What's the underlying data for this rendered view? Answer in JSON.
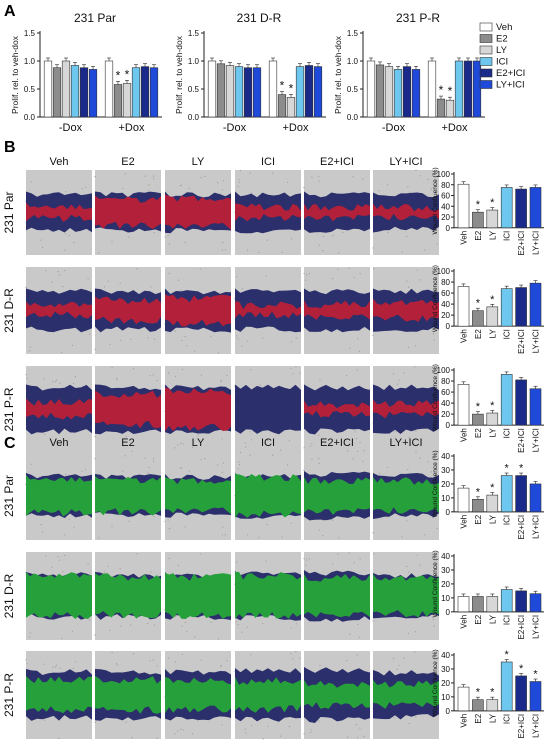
{
  "panel_labels": {
    "a": "A",
    "b": "B",
    "c": "C"
  },
  "colors": {
    "veh": "#ffffff",
    "e2": "#8c8c8c",
    "ly": "#d7d7d7",
    "ici": "#6ec7ee",
    "e2ici": "#1a2a8a",
    "lyici": "#1f49d8",
    "edge": "#333333",
    "tissue": "#c9c9c9",
    "navy": "#2b2f6b",
    "red": "#b3203a",
    "green": "#26a03a"
  },
  "panel_a": {
    "ylabel": "Prolif. rel. to veh-dox",
    "yticks": [
      "0.0",
      "0.5",
      "1.0",
      "1.5"
    ],
    "xcats": [
      "-Dox",
      "+Dox"
    ]
  },
  "panel_b": {
    "row_labels": [
      "231 Par",
      "231 D-R",
      "231 P-R"
    ],
    "col_labels": [
      "Veh",
      "E2",
      "LY",
      "ICI",
      "E2+ICI",
      "LY+ICI"
    ],
    "ylabel": "Wound Confluence (%)",
    "yticks": [
      "0",
      "20",
      "40",
      "60",
      "80",
      "100"
    ],
    "xticks": [
      "Veh",
      "E2",
      "LY",
      "ICI",
      "E2+ICI",
      "LY+ICI"
    ]
  },
  "panel_c": {
    "row_labels": [
      "231 Par",
      "231 D-R",
      "231 P-R"
    ],
    "col_labels": [
      "Veh",
      "E2",
      "LY",
      "ICI",
      "E2+ICI",
      "LY+ICI"
    ],
    "ylabel": "Wound Confluence (%)",
    "yticks": [
      "0",
      "10",
      "20",
      "30",
      "40"
    ],
    "xticks": [
      "Veh",
      "E2",
      "LY",
      "ICI",
      "E2+ICI",
      "LY+ICI"
    ]
  },
  "legend": {
    "items": [
      "Veh",
      "E2",
      "LY",
      "ICI",
      "E2+ICI",
      "LY+ICI"
    ]
  },
  "chart_data": [
    {
      "type": "bar",
      "title": "231 Par",
      "ylabel": "Prolif. rel. to veh-dox",
      "ylim": [
        0,
        1.5
      ],
      "categories": [
        "-Dox",
        "+Dox"
      ],
      "series": [
        {
          "name": "Veh",
          "values": [
            1.0,
            1.0
          ]
        },
        {
          "name": "E2",
          "values": [
            0.88,
            0.58
          ]
        },
        {
          "name": "LY",
          "values": [
            1.0,
            0.6
          ]
        },
        {
          "name": "ICI",
          "values": [
            0.92,
            0.88
          ]
        },
        {
          "name": "E2+ICI",
          "values": [
            0.88,
            0.9
          ]
        },
        {
          "name": "LY+ICI",
          "values": [
            0.85,
            0.88
          ]
        }
      ],
      "significant": [
        [
          1,
          1
        ],
        [
          1,
          2
        ]
      ]
    },
    {
      "type": "bar",
      "title": "231 D-R",
      "ylabel": "",
      "ylim": [
        0,
        1.5
      ],
      "categories": [
        "-Dox",
        "+Dox"
      ],
      "series": [
        {
          "name": "Veh",
          "values": [
            1.0,
            1.0
          ]
        },
        {
          "name": "E2",
          "values": [
            0.95,
            0.4
          ]
        },
        {
          "name": "LY",
          "values": [
            0.92,
            0.35
          ]
        },
        {
          "name": "ICI",
          "values": [
            0.9,
            0.9
          ]
        },
        {
          "name": "E2+ICI",
          "values": [
            0.88,
            0.92
          ]
        },
        {
          "name": "LY+ICI",
          "values": [
            0.88,
            0.9
          ]
        }
      ],
      "significant": [
        [
          1,
          1
        ],
        [
          1,
          2
        ]
      ]
    },
    {
      "type": "bar",
      "title": "231 P-R",
      "ylabel": "",
      "ylim": [
        0,
        1.5
      ],
      "categories": [
        "-Dox",
        "+Dox"
      ],
      "series": [
        {
          "name": "Veh",
          "values": [
            1.0,
            1.0
          ]
        },
        {
          "name": "E2",
          "values": [
            0.93,
            0.32
          ]
        },
        {
          "name": "LY",
          "values": [
            0.9,
            0.3
          ]
        },
        {
          "name": "ICI",
          "values": [
            0.85,
            1.0
          ]
        },
        {
          "name": "E2+ICI",
          "values": [
            0.9,
            1.0
          ]
        },
        {
          "name": "LY+ICI",
          "values": [
            0.85,
            1.0
          ]
        }
      ],
      "significant": [
        [
          1,
          1
        ],
        [
          1,
          2
        ]
      ]
    },
    {
      "type": "bar",
      "title": "",
      "ylabel": "Wound Confluence (%)",
      "ylim": [
        0,
        100
      ],
      "categories": [
        "Veh",
        "E2",
        "LY",
        "ICI",
        "E2+ICI",
        "LY+ICI"
      ],
      "values": [
        81,
        29,
        33,
        75,
        72,
        75
      ],
      "significant": [
        1,
        2
      ]
    },
    {
      "type": "bar",
      "title": "",
      "ylabel": "Wound Confluence (%)",
      "ylim": [
        0,
        100
      ],
      "categories": [
        "Veh",
        "E2",
        "LY",
        "ICI",
        "E2+ICI",
        "LY+ICI"
      ],
      "values": [
        72,
        28,
        35,
        68,
        70,
        78
      ],
      "significant": [
        1,
        2
      ]
    },
    {
      "type": "bar",
      "title": "",
      "ylabel": "Wound Confluence (%)",
      "ylim": [
        0,
        100
      ],
      "categories": [
        "Veh",
        "E2",
        "LY",
        "ICI",
        "E2+ICI",
        "LY+ICI"
      ],
      "values": [
        74,
        20,
        22,
        92,
        82,
        66
      ],
      "significant": [
        1,
        2
      ]
    },
    {
      "type": "bar",
      "title": "",
      "ylabel": "Wound Confluence (%)",
      "ylim": [
        0,
        40
      ],
      "categories": [
        "Veh",
        "E2",
        "LY",
        "ICI",
        "E2+ICI",
        "LY+ICI"
      ],
      "values": [
        17,
        9,
        12,
        26,
        26,
        20
      ],
      "significant": [
        1,
        2,
        3,
        4
      ]
    },
    {
      "type": "bar",
      "title": "",
      "ylabel": "Wound Confluence (%)",
      "ylim": [
        0,
        40
      ],
      "categories": [
        "Veh",
        "E2",
        "LY",
        "ICI",
        "E2+ICI",
        "LY+ICI"
      ],
      "values": [
        11,
        11,
        11,
        16,
        15,
        13
      ],
      "significant": []
    },
    {
      "type": "bar",
      "title": "",
      "ylabel": "Wound Confluence (%)",
      "ylim": [
        0,
        40
      ],
      "categories": [
        "Veh",
        "E2",
        "LY",
        "ICI",
        "E2+ICI",
        "LY+ICI"
      ],
      "values": [
        17,
        8,
        8,
        35,
        25,
        21
      ],
      "significant": [
        1,
        2,
        3,
        4,
        5
      ]
    }
  ]
}
